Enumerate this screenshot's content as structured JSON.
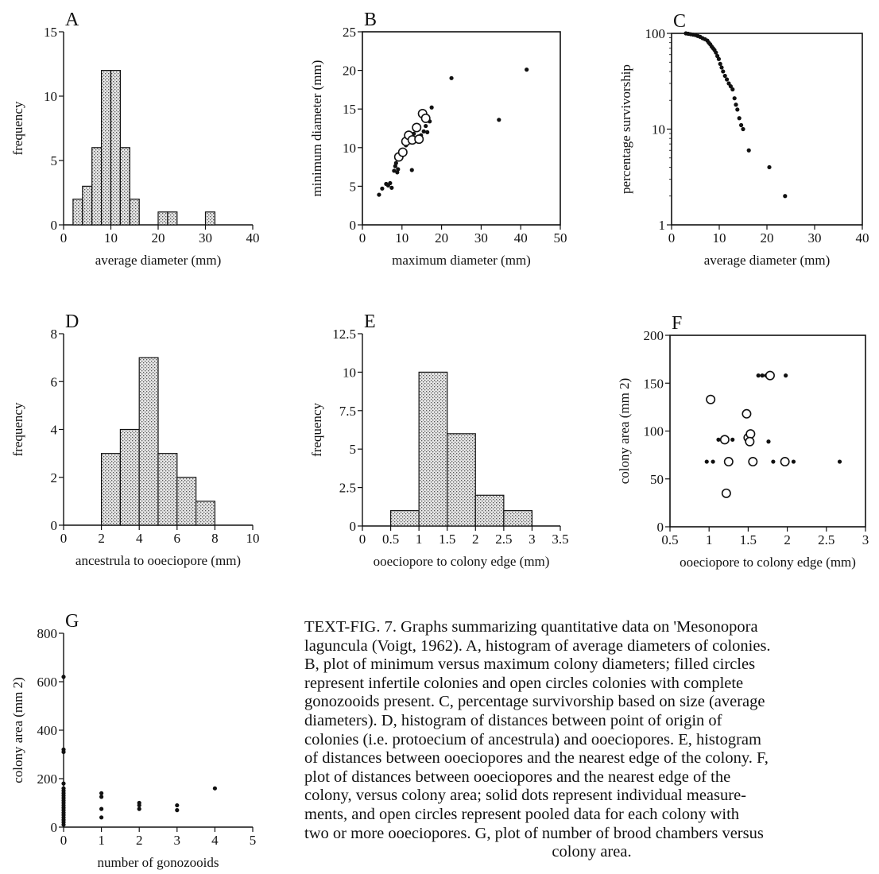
{
  "colors": {
    "ink": "#111111",
    "bar_fill": "#d8d8d8",
    "background": "#ffffff"
  },
  "figure": {
    "caption": {
      "label": "TEXT-FIG. 7.",
      "text": "Graphs summarizing quantitative data on 'Mesonopora laguncula (Voigt, 1962). A, histogram of average diameters of colonies. B, plot of minimum versus maximum colony diameters; filled circles represent infertile colonies and open circles colonies with complete gonozooids present. C, percentage survivorship based on size (average diameters). D, histogram of distances between point of origin of colonies (i.e. protoecium of ancestrula) and ooeciopores. E, histogram of distances between ooeciopores and the nearest edge of the colony. F, plot of distances between ooeciopores and the nearest edge of the colony, versus colony area; solid dots represent individual measurements, and open circles represent pooled data for each colony with two or more ooeciopores. G, plot of number of brood chambers versus colony area.",
      "lines": [
        "TEXT-FIG. 7. Graphs summarizing quantitative data on 'Mesonopora",
        "laguncula (Voigt, 1962). A, histogram of average diameters of colonies.",
        "B, plot of minimum versus maximum colony diameters; filled circles",
        "represent infertile colonies and open circles colonies with complete",
        "gonozooids present. C, percentage survivorship based on size (average",
        "diameters). D, histogram of distances between point of origin of",
        "colonies (i.e. protoecium of ancestrula) and ooeciopores. E, histogram",
        "of distances between ooeciopores and the nearest edge of the colony. F,",
        "plot of distances between ooeciopores and the nearest edge of the",
        "colony, versus colony area; solid dots represent individual measure-",
        "ments, and open circles represent pooled data for each colony with",
        "two or more ooeciopores. G, plot of number of brood chambers versus",
        "colony area."
      ]
    }
  },
  "chart_data": [
    {
      "panel": "A",
      "type": "bar",
      "style": "histogram",
      "xlabel": "average diameter (mm)",
      "ylabel": "frequency",
      "xlim": [
        0,
        40
      ],
      "ylim": [
        0,
        15
      ],
      "xticks": [
        0,
        10,
        20,
        30,
        40
      ],
      "yticks": [
        0,
        5,
        10,
        15
      ],
      "bin_width": 2,
      "bin_starts": [
        2,
        4,
        6,
        8,
        10,
        12,
        14,
        16,
        18,
        20,
        22,
        24,
        26,
        28,
        30
      ],
      "values": [
        2,
        3,
        6,
        12,
        12,
        6,
        2,
        0,
        0,
        1,
        1,
        0,
        0,
        0,
        1
      ]
    },
    {
      "panel": "B",
      "type": "scatter",
      "xlabel": "maximum diameter (mm)",
      "ylabel": "minimum diameter (mm)",
      "xlim": [
        0,
        50
      ],
      "ylim": [
        0,
        25
      ],
      "xticks": [
        0,
        10,
        20,
        30,
        40,
        50
      ],
      "yticks": [
        0,
        5,
        10,
        15,
        20,
        25
      ],
      "series": [
        {
          "marker": "filled",
          "points": [
            [
              4.2,
              3.9
            ],
            [
              5,
              4.7
            ],
            [
              6,
              5.3
            ],
            [
              6.5,
              5.1
            ],
            [
              7,
              5.4
            ],
            [
              7.4,
              4.8
            ],
            [
              8,
              7
            ],
            [
              8.3,
              7.6
            ],
            [
              8.5,
              8
            ],
            [
              8.8,
              6.8
            ],
            [
              9,
              7.2
            ],
            [
              9.5,
              8.6
            ],
            [
              10,
              9
            ],
            [
              10.5,
              9.6
            ],
            [
              11,
              10.3
            ],
            [
              11.5,
              11
            ],
            [
              12,
              11.4
            ],
            [
              12.5,
              7.1
            ],
            [
              13,
              11.8
            ],
            [
              13.5,
              12.3
            ],
            [
              14,
              12.9
            ],
            [
              14.8,
              11.6
            ],
            [
              15.5,
              12.1
            ],
            [
              16,
              12.8
            ],
            [
              16.4,
              12
            ],
            [
              17,
              13.4
            ],
            [
              17.5,
              15.2
            ],
            [
              22.5,
              19
            ],
            [
              34.5,
              13.6
            ],
            [
              41.5,
              20.1
            ]
          ]
        },
        {
          "marker": "open",
          "points": [
            [
              9.2,
              8.8
            ],
            [
              10.2,
              9.4
            ],
            [
              11,
              10.8
            ],
            [
              11.7,
              11.6
            ],
            [
              12.6,
              11
            ],
            [
              13.7,
              12.6
            ],
            [
              14.3,
              11.1
            ],
            [
              15.2,
              14.4
            ],
            [
              16,
              13.8
            ]
          ]
        }
      ]
    },
    {
      "panel": "C",
      "type": "scatter",
      "y_scale": "log",
      "xlabel": "average diameter (mm)",
      "ylabel": "percentage survivorship",
      "xlim": [
        0,
        40
      ],
      "ylim": [
        1,
        100
      ],
      "xticks": [
        0,
        10,
        20,
        30,
        40
      ],
      "yticks": [
        1,
        10,
        100
      ],
      "points": [
        [
          3,
          100
        ],
        [
          3.5,
          99
        ],
        [
          4,
          98
        ],
        [
          4.5,
          97
        ],
        [
          5,
          96
        ],
        [
          5.5,
          94
        ],
        [
          6,
          92
        ],
        [
          6.5,
          89
        ],
        [
          7,
          87
        ],
        [
          7.5,
          84
        ],
        [
          7.8,
          80
        ],
        [
          8.1,
          77
        ],
        [
          8.4,
          73
        ],
        [
          8.7,
          70
        ],
        [
          9,
          67
        ],
        [
          9.3,
          63
        ],
        [
          9.6,
          58
        ],
        [
          9.9,
          54
        ],
        [
          10.2,
          48
        ],
        [
          10.5,
          44
        ],
        [
          10.8,
          40
        ],
        [
          11.2,
          36
        ],
        [
          11.6,
          33
        ],
        [
          12,
          30
        ],
        [
          12.4,
          28
        ],
        [
          12.8,
          26
        ],
        [
          13.2,
          21
        ],
        [
          13.5,
          18
        ],
        [
          13.8,
          16
        ],
        [
          14.2,
          13
        ],
        [
          14.6,
          11
        ],
        [
          15,
          10
        ],
        [
          16.2,
          6
        ],
        [
          20.5,
          4
        ],
        [
          23.8,
          2
        ]
      ]
    },
    {
      "panel": "D",
      "type": "bar",
      "style": "histogram",
      "xlabel": "ancestrula to ooeciopore (mm)",
      "ylabel": "frequency",
      "xlim": [
        0,
        10
      ],
      "ylim": [
        0,
        8
      ],
      "xticks": [
        0,
        2,
        4,
        6,
        8,
        10
      ],
      "yticks": [
        0,
        2,
        4,
        6,
        8
      ],
      "bin_width": 1,
      "bin_starts": [
        2,
        3,
        4,
        5,
        6,
        7
      ],
      "values": [
        3,
        4,
        7,
        3,
        2,
        1
      ]
    },
    {
      "panel": "E",
      "type": "bar",
      "style": "histogram",
      "xlabel": "ooeciopore to colony edge (mm)",
      "ylabel": "frequency",
      "xlim": [
        0,
        3.5
      ],
      "ylim": [
        0,
        12.5
      ],
      "xticks": [
        0,
        0.5,
        1,
        1.5,
        2,
        2.5,
        3,
        3.5
      ],
      "yticks": [
        0,
        2.5,
        5,
        7.5,
        10,
        12.5
      ],
      "bin_width": 0.5,
      "bin_starts": [
        0.5,
        1,
        1.5,
        2,
        2.5
      ],
      "values": [
        1,
        10,
        6,
        2,
        1
      ]
    },
    {
      "panel": "F",
      "type": "scatter",
      "xlabel": "ooeciopore to colony edge (mm)",
      "ylabel": "colony area (mm 2)",
      "xlim": [
        0.5,
        3
      ],
      "ylim": [
        0,
        200
      ],
      "xticks": [
        0.5,
        1,
        1.5,
        2,
        2.5,
        3
      ],
      "yticks": [
        0,
        50,
        100,
        150,
        200
      ],
      "series": [
        {
          "marker": "filled",
          "points": [
            [
              0.97,
              68
            ],
            [
              1.05,
              68
            ],
            [
              1.12,
              91
            ],
            [
              1.3,
              91
            ],
            [
              1.63,
              158
            ],
            [
              1.68,
              158
            ],
            [
              1.73,
              158
            ],
            [
              1.98,
              158
            ],
            [
              1.76,
              89
            ],
            [
              1.82,
              68
            ],
            [
              2.08,
              68
            ],
            [
              2.67,
              68
            ]
          ]
        },
        {
          "marker": "open",
          "points": [
            [
              1.02,
              133
            ],
            [
              1.2,
              91
            ],
            [
              1.22,
              35
            ],
            [
              1.25,
              68
            ],
            [
              1.48,
              118
            ],
            [
              1.5,
              93
            ],
            [
              1.53,
              97
            ],
            [
              1.52,
              89
            ],
            [
              1.56,
              68
            ],
            [
              1.78,
              158
            ],
            [
              1.97,
              68
            ]
          ]
        }
      ]
    },
    {
      "panel": "G",
      "type": "scatter",
      "xlabel": "number of gonozooids",
      "ylabel": "colony area (mm 2)",
      "xlim": [
        0,
        5
      ],
      "ylim": [
        0,
        800
      ],
      "xticks": [
        0,
        1,
        2,
        3,
        4,
        5
      ],
      "yticks": [
        0,
        200,
        400,
        600,
        800
      ],
      "points": [
        [
          0,
          620
        ],
        [
          0,
          320
        ],
        [
          0,
          310
        ],
        [
          0,
          180
        ],
        [
          0,
          160
        ],
        [
          0,
          150
        ],
        [
          0,
          140
        ],
        [
          0,
          130
        ],
        [
          0,
          120
        ],
        [
          0,
          110
        ],
        [
          0,
          100
        ],
        [
          0,
          90
        ],
        [
          0,
          80
        ],
        [
          0,
          70
        ],
        [
          0,
          60
        ],
        [
          0,
          50
        ],
        [
          0,
          40
        ],
        [
          0,
          30
        ],
        [
          0,
          20
        ],
        [
          0,
          10
        ],
        [
          1,
          140
        ],
        [
          1,
          125
        ],
        [
          1,
          75
        ],
        [
          1,
          40
        ],
        [
          2,
          100
        ],
        [
          2,
          90
        ],
        [
          2,
          75
        ],
        [
          3,
          90
        ],
        [
          3,
          70
        ],
        [
          4,
          160
        ]
      ]
    }
  ]
}
